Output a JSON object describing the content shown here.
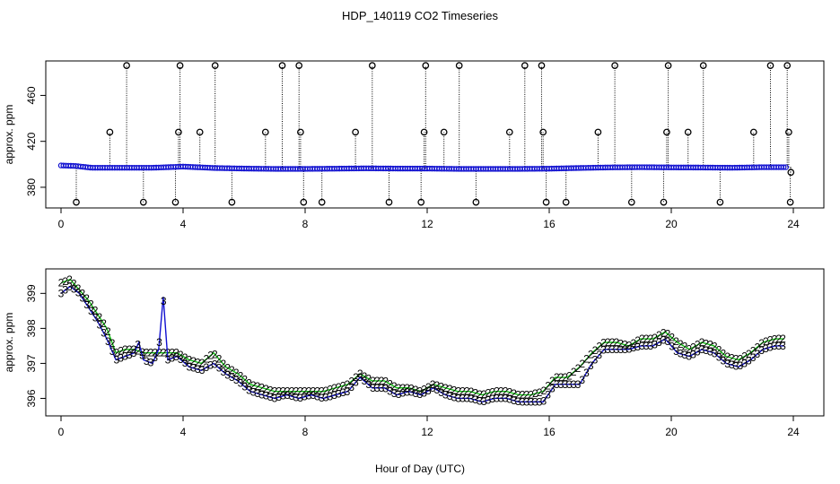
{
  "figure": {
    "title": "HDP_140119  CO2 Timeseries",
    "xlabel": "Hour of Day (UTC)"
  },
  "colors": {
    "blue": "#1010d0",
    "green": "#10c010",
    "black": "#000000",
    "cyan": "#20c0c0"
  },
  "chart_data": [
    {
      "type": "scatter",
      "panel": "top",
      "ylabel": "approx. ppm",
      "xlim": [
        -0.5,
        25
      ],
      "ylim": [
        362,
        490
      ],
      "xticks": [
        0,
        4,
        8,
        12,
        16,
        20,
        24
      ],
      "yticks": [
        380,
        420,
        460
      ],
      "grid": false,
      "baseline_series": {
        "name": "",
        "x": [
          0,
          0.5,
          1,
          2,
          3,
          4,
          5,
          6,
          7,
          8,
          9,
          10,
          11,
          12,
          13,
          14,
          15,
          16,
          17,
          18,
          19,
          20,
          21,
          22,
          23,
          23.8
        ],
        "y": [
          399,
          398.5,
          397,
          397,
          397,
          398,
          396.8,
          396.3,
          396,
          396,
          396.2,
          396.5,
          396.3,
          396.3,
          396,
          396,
          396,
          396.2,
          396.8,
          397.3,
          397.5,
          397.3,
          397.2,
          397,
          397.5,
          397.5
        ]
      },
      "spikes": [
        {
          "x": 0.5,
          "y": 367
        },
        {
          "x": 1.6,
          "y": 428
        },
        {
          "x": 2.15,
          "y": 486
        },
        {
          "x": 2.7,
          "y": 367
        },
        {
          "x": 3.75,
          "y": 367
        },
        {
          "x": 3.85,
          "y": 428
        },
        {
          "x": 3.9,
          "y": 486
        },
        {
          "x": 4.55,
          "y": 428
        },
        {
          "x": 5.05,
          "y": 486
        },
        {
          "x": 5.6,
          "y": 367
        },
        {
          "x": 6.7,
          "y": 428
        },
        {
          "x": 7.25,
          "y": 486
        },
        {
          "x": 7.8,
          "y": 486
        },
        {
          "x": 7.85,
          "y": 428
        },
        {
          "x": 7.95,
          "y": 367
        },
        {
          "x": 8.55,
          "y": 367
        },
        {
          "x": 9.65,
          "y": 428
        },
        {
          "x": 10.2,
          "y": 486
        },
        {
          "x": 10.75,
          "y": 367
        },
        {
          "x": 11.8,
          "y": 367
        },
        {
          "x": 11.9,
          "y": 428
        },
        {
          "x": 11.95,
          "y": 486
        },
        {
          "x": 12.55,
          "y": 428
        },
        {
          "x": 13.05,
          "y": 486
        },
        {
          "x": 13.6,
          "y": 367
        },
        {
          "x": 14.7,
          "y": 428
        },
        {
          "x": 15.2,
          "y": 486
        },
        {
          "x": 15.75,
          "y": 486
        },
        {
          "x": 15.8,
          "y": 428
        },
        {
          "x": 15.9,
          "y": 367
        },
        {
          "x": 16.55,
          "y": 367
        },
        {
          "x": 17.6,
          "y": 428
        },
        {
          "x": 18.15,
          "y": 486
        },
        {
          "x": 18.7,
          "y": 367
        },
        {
          "x": 19.75,
          "y": 367
        },
        {
          "x": 19.85,
          "y": 428
        },
        {
          "x": 19.9,
          "y": 486
        },
        {
          "x": 20.55,
          "y": 428
        },
        {
          "x": 21.05,
          "y": 486
        },
        {
          "x": 21.6,
          "y": 367
        },
        {
          "x": 22.7,
          "y": 428
        },
        {
          "x": 23.25,
          "y": 486
        },
        {
          "x": 23.8,
          "y": 486
        },
        {
          "x": 23.85,
          "y": 428
        },
        {
          "x": 23.9,
          "y": 367
        },
        {
          "x": 23.92,
          "y": 393
        }
      ]
    },
    {
      "type": "line",
      "panel": "bottom",
      "ylabel": "approx. ppm",
      "xlim": [
        -0.5,
        25
      ],
      "ylim": [
        395.5,
        399.7
      ],
      "xticks": [
        0,
        4,
        8,
        12,
        16,
        20,
        24
      ],
      "yticks": [
        396,
        397,
        398,
        399
      ],
      "grid": false,
      "marker_labels": [
        "2",
        "3"
      ],
      "series": [
        {
          "name": "",
          "x": [
            0,
            0.3,
            0.6,
            0.9,
            1.2,
            1.5,
            1.8,
            2.1,
            2.4,
            2.55,
            2.7,
            3.0,
            3.2,
            3.35,
            3.5,
            3.8,
            4.2,
            4.6,
            5.0,
            5.4,
            5.8,
            6.2,
            6.6,
            7.0,
            7.4,
            7.8,
            8.2,
            8.6,
            9.0,
            9.4,
            9.8,
            10.2,
            10.6,
            11.0,
            11.4,
            11.8,
            12.2,
            12.6,
            13.0,
            13.4,
            13.8,
            14.2,
            14.6,
            15.0,
            15.4,
            15.8,
            16.2,
            16.6,
            17.0,
            17.4,
            17.8,
            18.2,
            18.6,
            19.0,
            19.4,
            19.8,
            20.2,
            20.6,
            21.0,
            21.4,
            21.8,
            22.2,
            22.6,
            23.0,
            23.4,
            23.7
          ],
          "y": [
            399.0,
            399.2,
            399.0,
            398.6,
            398.2,
            397.7,
            397.1,
            397.2,
            397.3,
            397.6,
            397.1,
            397.0,
            397.4,
            398.9,
            397.1,
            397.2,
            396.9,
            396.8,
            397.0,
            396.7,
            396.5,
            396.2,
            396.1,
            396.0,
            396.1,
            396.0,
            396.1,
            396.0,
            396.1,
            396.2,
            396.6,
            396.3,
            396.3,
            396.1,
            396.2,
            396.1,
            396.3,
            396.1,
            396.0,
            396.0,
            395.9,
            396.0,
            396.0,
            395.9,
            395.9,
            395.9,
            396.4,
            396.4,
            396.4,
            397.0,
            397.4,
            397.4,
            397.4,
            397.5,
            397.5,
            397.7,
            397.3,
            397.2,
            397.4,
            397.3,
            397.0,
            396.9,
            397.1,
            397.4,
            397.5,
            397.5
          ]
        },
        {
          "name": "",
          "x": [
            0,
            0.3,
            0.6,
            0.9,
            1.2,
            1.5,
            1.8,
            2.1,
            2.4,
            2.7,
            3.0,
            3.5,
            3.8,
            4.2,
            4.6,
            5.0,
            5.4,
            5.8,
            6.2,
            6.6,
            7.0,
            7.4,
            7.8,
            8.2,
            8.6,
            9.0,
            9.4,
            9.8,
            10.2,
            10.6,
            11.0,
            11.4,
            11.8,
            12.2,
            12.6,
            13.0,
            13.4,
            13.8,
            14.2,
            14.6,
            15.0,
            15.4,
            15.8,
            16.2,
            16.6,
            17.0,
            17.4,
            17.8,
            18.2,
            18.6,
            19.0,
            19.4,
            19.8,
            20.2,
            20.6,
            21.0,
            21.4,
            21.8,
            22.2,
            22.6,
            23.0,
            23.4,
            23.7
          ],
          "y": [
            399.3,
            399.4,
            399.1,
            398.8,
            398.4,
            398.0,
            397.3,
            397.4,
            397.4,
            397.3,
            397.3,
            397.3,
            397.3,
            397.1,
            397.0,
            397.3,
            396.9,
            396.7,
            396.4,
            396.3,
            396.2,
            396.2,
            396.2,
            396.2,
            396.2,
            396.3,
            396.4,
            396.7,
            396.5,
            396.5,
            396.3,
            396.3,
            396.2,
            396.4,
            396.3,
            396.2,
            396.2,
            396.1,
            396.2,
            396.2,
            396.1,
            396.1,
            396.2,
            396.6,
            396.6,
            396.9,
            397.3,
            397.6,
            397.6,
            397.5,
            397.7,
            397.7,
            397.9,
            397.6,
            397.4,
            397.6,
            397.5,
            397.2,
            397.1,
            397.3,
            397.6,
            397.7,
            397.7
          ]
        }
      ]
    }
  ]
}
